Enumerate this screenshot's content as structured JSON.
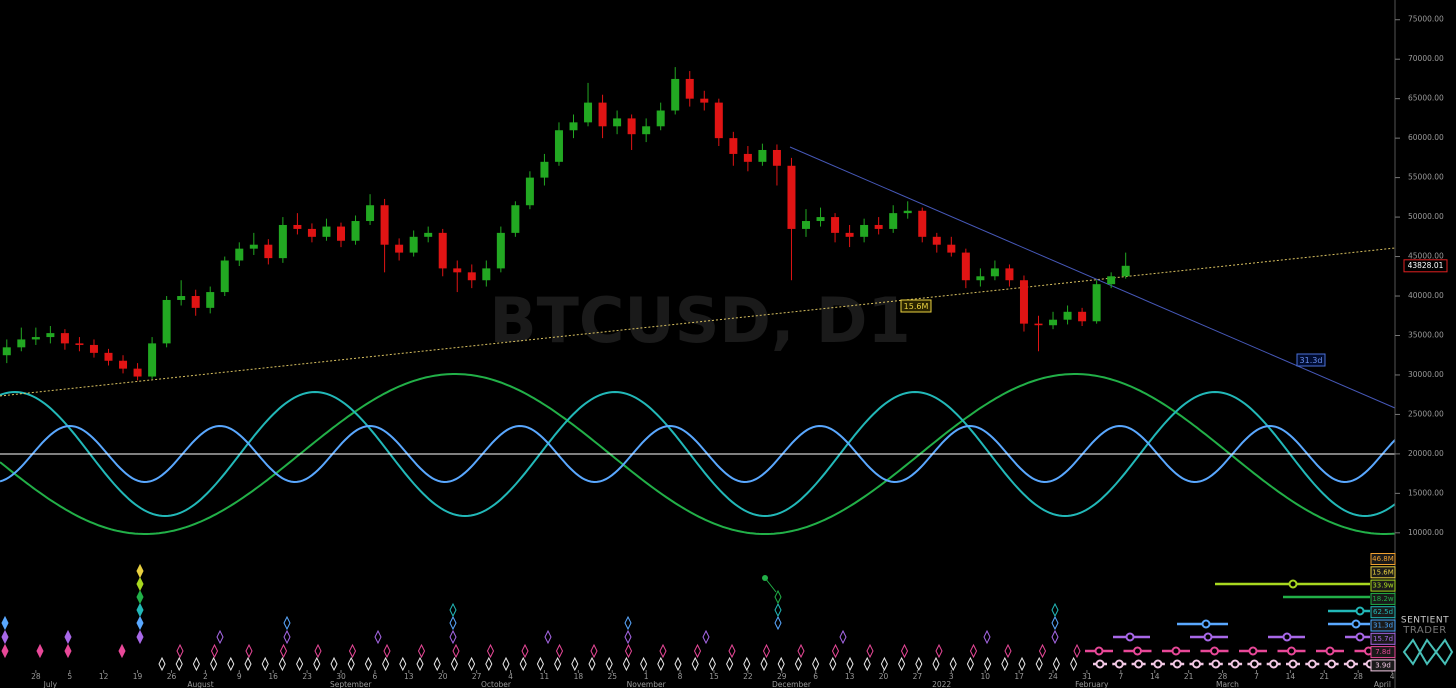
{
  "chart_data": {
    "type": "candlestick",
    "title": "BTCUSD, D1",
    "up_color": "#22a822",
    "down_color": "#e01414",
    "candles": [
      {
        "x": -6,
        "o": 32500,
        "h": 34500,
        "l": 31500,
        "c": 33500
      },
      {
        "x": -3,
        "o": 33500,
        "h": 36000,
        "l": 33000,
        "c": 34500
      },
      {
        "x": 0,
        "o": 34500,
        "h": 36000,
        "l": 33800,
        "c": 34800
      },
      {
        "x": 3,
        "o": 34800,
        "h": 36200,
        "l": 34000,
        "c": 35300
      },
      {
        "x": 6,
        "o": 35300,
        "h": 35800,
        "l": 33200,
        "c": 34000
      },
      {
        "x": 9,
        "o": 34000,
        "h": 34800,
        "l": 33000,
        "c": 33800
      },
      {
        "x": 12,
        "o": 33800,
        "h": 34500,
        "l": 32200,
        "c": 32800
      },
      {
        "x": 15,
        "o": 32800,
        "h": 33300,
        "l": 31200,
        "c": 31800
      },
      {
        "x": 18,
        "o": 31800,
        "h": 32500,
        "l": 30200,
        "c": 30800
      },
      {
        "x": 21,
        "o": 30800,
        "h": 31500,
        "l": 29300,
        "c": 29800
      },
      {
        "x": 24,
        "o": 29800,
        "h": 34800,
        "l": 29500,
        "c": 34000
      },
      {
        "x": 27,
        "o": 34000,
        "h": 40000,
        "l": 33500,
        "c": 39500
      },
      {
        "x": 30,
        "o": 39500,
        "h": 42000,
        "l": 38800,
        "c": 40000
      },
      {
        "x": 33,
        "o": 40000,
        "h": 40800,
        "l": 37500,
        "c": 38500
      },
      {
        "x": 36,
        "o": 38500,
        "h": 41200,
        "l": 37800,
        "c": 40500
      },
      {
        "x": 39,
        "o": 40500,
        "h": 45000,
        "l": 40000,
        "c": 44500
      },
      {
        "x": 42,
        "o": 44500,
        "h": 46800,
        "l": 43800,
        "c": 46000
      },
      {
        "x": 45,
        "o": 46000,
        "h": 48000,
        "l": 45200,
        "c": 46500
      },
      {
        "x": 48,
        "o": 46500,
        "h": 47200,
        "l": 44000,
        "c": 44800
      },
      {
        "x": 51,
        "o": 44800,
        "h": 50000,
        "l": 44200,
        "c": 49000
      },
      {
        "x": 54,
        "o": 49000,
        "h": 50500,
        "l": 47800,
        "c": 48500
      },
      {
        "x": 57,
        "o": 48500,
        "h": 49200,
        "l": 46800,
        "c": 47500
      },
      {
        "x": 60,
        "o": 47500,
        "h": 49800,
        "l": 47000,
        "c": 48800
      },
      {
        "x": 63,
        "o": 48800,
        "h": 49300,
        "l": 46200,
        "c": 47000
      },
      {
        "x": 66,
        "o": 47000,
        "h": 50200,
        "l": 46500,
        "c": 49500
      },
      {
        "x": 69,
        "o": 49500,
        "h": 52900,
        "l": 49000,
        "c": 51500
      },
      {
        "x": 72,
        "o": 51500,
        "h": 52300,
        "l": 43000,
        "c": 46500
      },
      {
        "x": 75,
        "o": 46500,
        "h": 47300,
        "l": 44500,
        "c": 45500
      },
      {
        "x": 78,
        "o": 45500,
        "h": 48300,
        "l": 45000,
        "c": 47500
      },
      {
        "x": 81,
        "o": 47500,
        "h": 48800,
        "l": 46800,
        "c": 48000
      },
      {
        "x": 84,
        "o": 48000,
        "h": 48500,
        "l": 42500,
        "c": 43500
      },
      {
        "x": 87,
        "o": 43500,
        "h": 44500,
        "l": 40500,
        "c": 43000
      },
      {
        "x": 90,
        "o": 43000,
        "h": 44000,
        "l": 41000,
        "c": 42000
      },
      {
        "x": 93,
        "o": 42000,
        "h": 44500,
        "l": 41200,
        "c": 43500
      },
      {
        "x": 96,
        "o": 43500,
        "h": 48800,
        "l": 43000,
        "c": 48000
      },
      {
        "x": 99,
        "o": 48000,
        "h": 52000,
        "l": 47500,
        "c": 51500
      },
      {
        "x": 102,
        "o": 51500,
        "h": 55800,
        "l": 51000,
        "c": 55000
      },
      {
        "x": 105,
        "o": 55000,
        "h": 58000,
        "l": 54000,
        "c": 57000
      },
      {
        "x": 108,
        "o": 57000,
        "h": 62000,
        "l": 56500,
        "c": 61000
      },
      {
        "x": 111,
        "o": 61000,
        "h": 63000,
        "l": 60000,
        "c": 62000
      },
      {
        "x": 114,
        "o": 62000,
        "h": 67000,
        "l": 61500,
        "c": 64500
      },
      {
        "x": 117,
        "o": 64500,
        "h": 65500,
        "l": 60000,
        "c": 61500
      },
      {
        "x": 120,
        "o": 61500,
        "h": 63500,
        "l": 60500,
        "c": 62500
      },
      {
        "x": 123,
        "o": 62500,
        "h": 63000,
        "l": 58500,
        "c": 60500
      },
      {
        "x": 126,
        "o": 60500,
        "h": 62500,
        "l": 59500,
        "c": 61500
      },
      {
        "x": 129,
        "o": 61500,
        "h": 64500,
        "l": 61000,
        "c": 63500
      },
      {
        "x": 132,
        "o": 63500,
        "h": 69000,
        "l": 63000,
        "c": 67500
      },
      {
        "x": 135,
        "o": 67500,
        "h": 68500,
        "l": 64000,
        "c": 65000
      },
      {
        "x": 138,
        "o": 65000,
        "h": 66000,
        "l": 63500,
        "c": 64500
      },
      {
        "x": 141,
        "o": 64500,
        "h": 65000,
        "l": 59000,
        "c": 60000
      },
      {
        "x": 144,
        "o": 60000,
        "h": 60800,
        "l": 56500,
        "c": 58000
      },
      {
        "x": 147,
        "o": 58000,
        "h": 59000,
        "l": 55800,
        "c": 57000
      },
      {
        "x": 150,
        "o": 57000,
        "h": 59300,
        "l": 56500,
        "c": 58500
      },
      {
        "x": 153,
        "o": 58500,
        "h": 59200,
        "l": 54000,
        "c": 56500
      },
      {
        "x": 156,
        "o": 56500,
        "h": 57500,
        "l": 42000,
        "c": 48500
      },
      {
        "x": 159,
        "o": 48500,
        "h": 51000,
        "l": 47500,
        "c": 49500
      },
      {
        "x": 162,
        "o": 49500,
        "h": 51200,
        "l": 48800,
        "c": 50000
      },
      {
        "x": 165,
        "o": 50000,
        "h": 50500,
        "l": 46800,
        "c": 48000
      },
      {
        "x": 168,
        "o": 48000,
        "h": 49000,
        "l": 46200,
        "c": 47500
      },
      {
        "x": 171,
        "o": 47500,
        "h": 49800,
        "l": 46800,
        "c": 49000
      },
      {
        "x": 174,
        "o": 49000,
        "h": 50000,
        "l": 47800,
        "c": 48500
      },
      {
        "x": 177,
        "o": 48500,
        "h": 51500,
        "l": 48000,
        "c": 50500
      },
      {
        "x": 180,
        "o": 50500,
        "h": 52000,
        "l": 49800,
        "c": 50800
      },
      {
        "x": 183,
        "o": 50800,
        "h": 51200,
        "l": 46800,
        "c": 47500
      },
      {
        "x": 186,
        "o": 47500,
        "h": 48000,
        "l": 45500,
        "c": 46500
      },
      {
        "x": 189,
        "o": 46500,
        "h": 47500,
        "l": 45000,
        "c": 45500
      },
      {
        "x": 192,
        "o": 45500,
        "h": 46000,
        "l": 41000,
        "c": 42000
      },
      {
        "x": 195,
        "o": 42000,
        "h": 43500,
        "l": 41200,
        "c": 42500
      },
      {
        "x": 198,
        "o": 42500,
        "h": 44500,
        "l": 42000,
        "c": 43500
      },
      {
        "x": 201,
        "o": 43500,
        "h": 44000,
        "l": 41200,
        "c": 42000
      },
      {
        "x": 204,
        "o": 42000,
        "h": 42600,
        "l": 35500,
        "c": 36500
      },
      {
        "x": 207,
        "o": 36500,
        "h": 37500,
        "l": 33000,
        "c": 36300
      },
      {
        "x": 210,
        "o": 36300,
        "h": 38000,
        "l": 35800,
        "c": 37000
      },
      {
        "x": 213,
        "o": 37000,
        "h": 38800,
        "l": 36400,
        "c": 38000
      },
      {
        "x": 216,
        "o": 38000,
        "h": 38500,
        "l": 36200,
        "c": 36800
      },
      {
        "x": 219,
        "o": 36800,
        "h": 42000,
        "l": 36500,
        "c": 41500
      },
      {
        "x": 222,
        "o": 41500,
        "h": 43000,
        "l": 41000,
        "c": 42500
      },
      {
        "x": 225,
        "o": 42500,
        "h": 45500,
        "l": 42200,
        "c": 43828.01
      }
    ],
    "last_price": 43828.01,
    "xlim": [
      -7.4,
      280.6
    ],
    "ylim": [
      5000,
      77500
    ],
    "yticks": [
      {
        "value": 10000,
        "label": "10000.00"
      },
      {
        "value": 15000,
        "label": "15000.00"
      },
      {
        "value": 20000,
        "label": "20000.00"
      },
      {
        "value": 25000,
        "label": "25000.00"
      },
      {
        "value": 30000,
        "label": "30000.00"
      },
      {
        "value": 35000,
        "label": "35000.00"
      },
      {
        "value": 40000,
        "label": "40000.00"
      },
      {
        "value": 45000,
        "label": "45000.00"
      },
      {
        "value": 50000,
        "label": "50000.00"
      },
      {
        "value": 55000,
        "label": "55000.00"
      },
      {
        "value": 60000,
        "label": "60000.00"
      },
      {
        "value": 65000,
        "label": "65000.00"
      },
      {
        "value": 70000,
        "label": "70000.00"
      },
      {
        "value": 75000,
        "label": "75000.00"
      }
    ],
    "xticks": [
      {
        "value": 0,
        "label": "28"
      },
      {
        "value": 7,
        "label": "5"
      },
      {
        "value": 14,
        "label": "12"
      },
      {
        "value": 21,
        "label": "19"
      },
      {
        "value": 28,
        "label": "26"
      },
      {
        "value": 35,
        "label": "2"
      },
      {
        "value": 42,
        "label": "9"
      },
      {
        "value": 49,
        "label": "16"
      },
      {
        "value": 56,
        "label": "23"
      },
      {
        "value": 63,
        "label": "30"
      },
      {
        "value": 70,
        "label": "6"
      },
      {
        "value": 77,
        "label": "13"
      },
      {
        "value": 84,
        "label": "20"
      },
      {
        "value": 91,
        "label": "27"
      },
      {
        "value": 98,
        "label": "4"
      },
      {
        "value": 105,
        "label": "11"
      },
      {
        "value": 112,
        "label": "18"
      },
      {
        "value": 119,
        "label": "25"
      },
      {
        "value": 126,
        "label": "1"
      },
      {
        "value": 133,
        "label": "8"
      },
      {
        "value": 140,
        "label": "15"
      },
      {
        "value": 147,
        "label": "22"
      },
      {
        "value": 154,
        "label": "29"
      },
      {
        "value": 161,
        "label": "6"
      },
      {
        "value": 168,
        "label": "13"
      },
      {
        "value": 175,
        "label": "20"
      },
      {
        "value": 182,
        "label": "27"
      },
      {
        "value": 189,
        "label": "3"
      },
      {
        "value": 196,
        "label": "10"
      },
      {
        "value": 203,
        "label": "17"
      },
      {
        "value": 210,
        "label": "24"
      },
      {
        "value": 217,
        "label": "31"
      },
      {
        "value": 224,
        "label": "7"
      },
      {
        "value": 231,
        "label": "14"
      },
      {
        "value": 238,
        "label": "21"
      },
      {
        "value": 245,
        "label": "28"
      },
      {
        "value": 252,
        "label": "7"
      },
      {
        "value": 259,
        "label": "14"
      },
      {
        "value": 266,
        "label": "21"
      },
      {
        "value": 273,
        "label": "28"
      },
      {
        "value": 280,
        "label": "4"
      }
    ],
    "month_labels": [
      {
        "value": 3,
        "label": "July"
      },
      {
        "value": 34,
        "label": "August"
      },
      {
        "value": 65,
        "label": "September"
      },
      {
        "value": 95,
        "label": "October"
      },
      {
        "value": 126,
        "label": "November"
      },
      {
        "value": 156,
        "label": "December"
      },
      {
        "value": 187,
        "label": "2022"
      },
      {
        "value": 218,
        "label": "February"
      },
      {
        "value": 246,
        "label": "March"
      },
      {
        "value": 278,
        "label": "April"
      }
    ],
    "annotations": [
      "15.6M",
      "31.3d"
    ],
    "cycles": [
      {
        "name": "46.8M",
        "color": "#f0a030"
      },
      {
        "name": "15.6M",
        "color": "#e8d040"
      },
      {
        "name": "33.9w",
        "color": "#a8d820"
      },
      {
        "name": "18.2w",
        "color": "#22b048"
      },
      {
        "name": "62.5d",
        "color": "#22b8b8"
      },
      {
        "name": "31.3d",
        "color": "#4aa8ff"
      },
      {
        "name": "15.7d",
        "color": "#a868e8"
      },
      {
        "name": "7.8d",
        "color": "#e84898"
      },
      {
        "name": "3.9d",
        "color": "#f2c8e4"
      }
    ]
  },
  "brand": {
    "line1": "SENTIENT",
    "line2": "TRADER"
  }
}
